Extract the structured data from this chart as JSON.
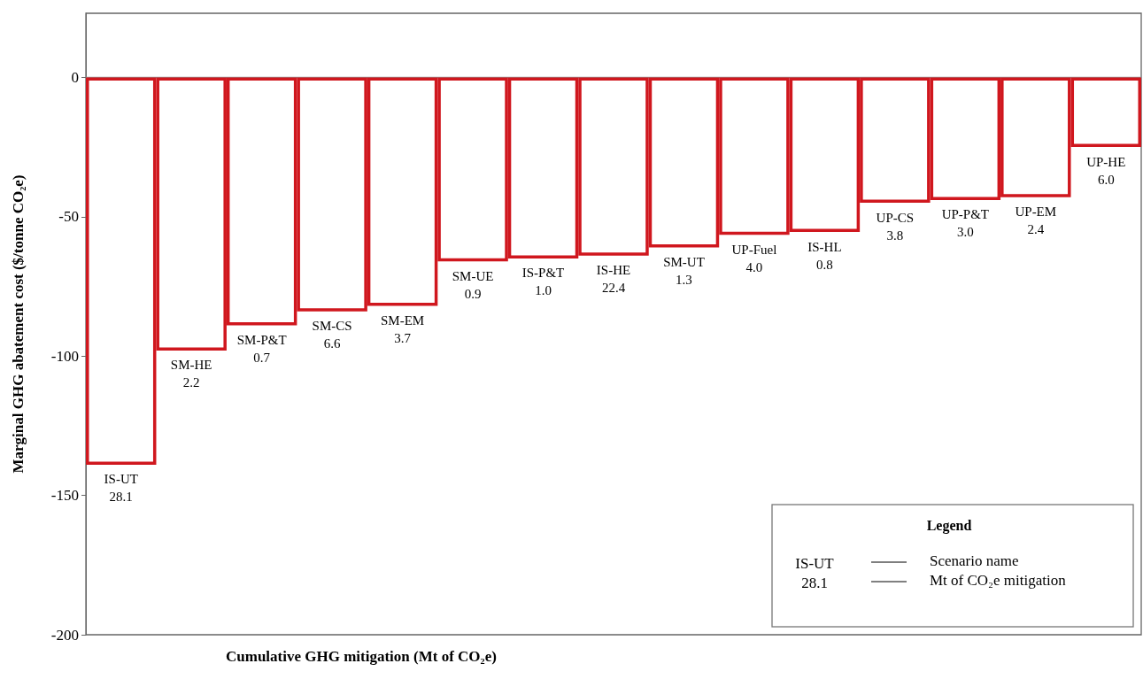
{
  "chart_data": {
    "type": "bar",
    "xlabel": "Cumulative GHG mitigation (Mt of CO₂e)",
    "ylabel": "Marginal GHG abatement cost ($/tonne CO₂e)",
    "legend_title": "Legend",
    "categories": [
      null,
      null,
      null,
      null,
      null,
      null,
      null,
      null,
      null,
      null,
      null,
      null,
      null,
      null,
      null
    ],
    "series": [
      {
        "color": "#d0171e",
        "values": [
          -139,
          -98,
          -89,
          -84,
          -82,
          -66,
          -65,
          -64,
          -61,
          -56.5,
          -55.5,
          -45,
          -44,
          -43,
          -25
        ]
      }
    ],
    "ylim": [
      -200,
      23
    ],
    "yticks": [
      -200,
      -150,
      -100,
      -50,
      0
    ],
    "tick_labels": "y",
    "annotations": [
      "IS-UT\n28.1",
      "SM-HE\n2.2",
      "SM-P&T\n0.7",
      "SM-CS\n6.6",
      "SM-EM\n3.7",
      "SM-UE\n0.9",
      "IS-P&T\n1.0",
      "IS-HE\n22.4",
      "SM-UT\n1.3",
      "UP-Fuel\n4.0",
      "IS-HL\n0.8",
      "UP-CS\n3.8",
      "UP-P&T\n3.0",
      "UP-EM\n2.4",
      "UP-HE\n6.0",
      "IS-UT\n28.1",
      "Scenario name",
      "Mt of CO₂e mitigation"
    ]
  }
}
